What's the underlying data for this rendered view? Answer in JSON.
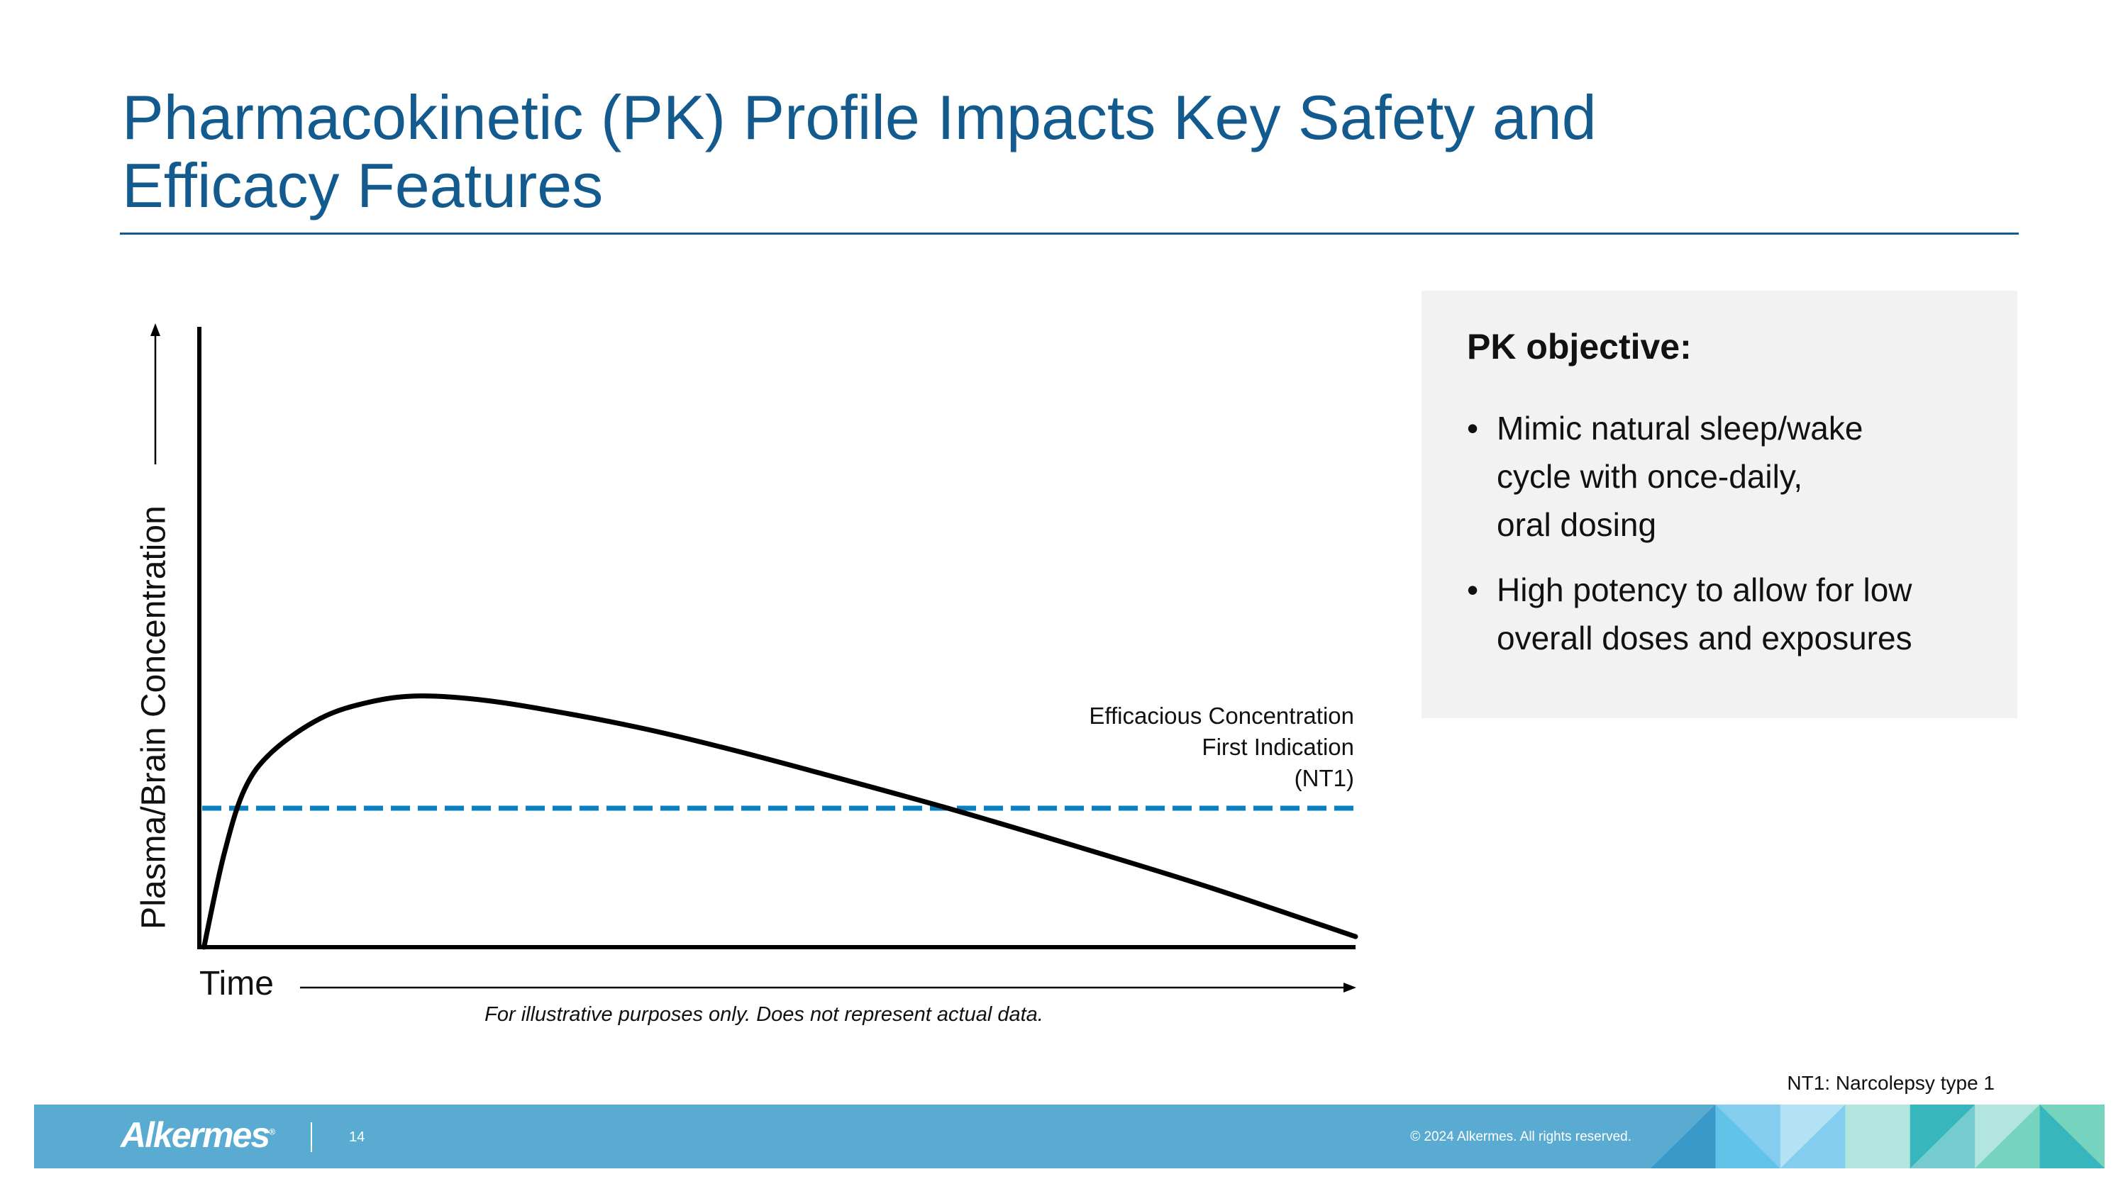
{
  "title": {
    "line1": "Pharmacokinetic (PK) Profile Impacts Key Safety and",
    "line2": "Efficacy Features"
  },
  "objective_box": {
    "heading": "PK objective:",
    "bullets": [
      {
        "lines": [
          "Mimic natural sleep/wake",
          "cycle with once-daily,",
          "oral dosing"
        ]
      },
      {
        "lines": [
          "High potency to allow for low",
          "overall doses and exposures"
        ]
      }
    ]
  },
  "chart_data": {
    "type": "line",
    "title": "",
    "xlabel": "Time",
    "ylabel": "Plasma/Brain Concentration",
    "xlim": [
      0,
      100
    ],
    "ylim": [
      0,
      100
    ],
    "grid": false,
    "ticks": false,
    "series": [
      {
        "color": "#000000",
        "x": [
          0.4,
          2.1,
          3.9,
          6.3,
          10.5,
          14.7,
          19.1,
          25.1,
          32,
          39,
          45.9,
          53.6,
          65.3,
          77.2,
          87.6,
          100
        ],
        "y": [
          0,
          14.7,
          25.4,
          31.5,
          36.9,
          39.5,
          40.5,
          39.7,
          37.6,
          35,
          31.9,
          28.1,
          22.1,
          15.5,
          9.5,
          1.7
        ]
      }
    ],
    "threshold": {
      "value": 22.4,
      "style": "dashed",
      "color": "#0a7fc1",
      "label_lines": [
        "Efficacious Concentration",
        "First Indication",
        "(NT1)"
      ]
    },
    "caption": "For illustrative purposes only. Does not represent actual data."
  },
  "footnote": "NT1: Narcolepsy type 1",
  "footer": {
    "logo": "Alkermes",
    "logo_mark": "®",
    "page_number": "14",
    "copyright": "© 2024 Alkermes. All rights reserved.",
    "bar_color": "#5aabd1"
  }
}
